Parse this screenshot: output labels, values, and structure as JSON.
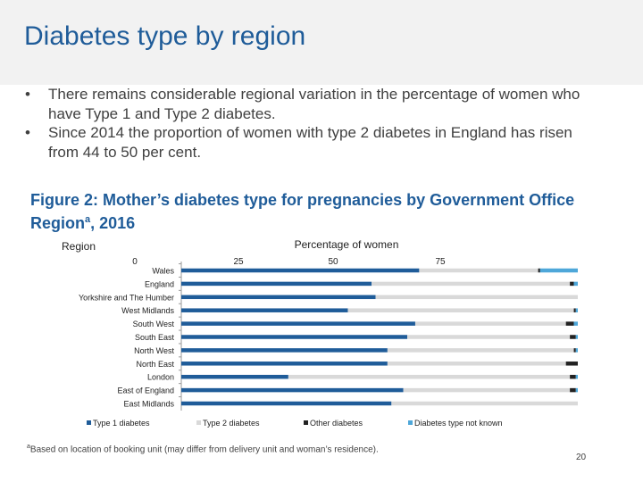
{
  "slide": {
    "title": "Diabetes type by region",
    "bullets": [
      "There remains considerable regional variation in the percentage of women who have Type 1 and Type 2 diabetes.",
      "Since 2014 the proportion of women with type 2 diabetes in England has risen from 44 to 50 per cent."
    ],
    "bullet_symbol": "•",
    "figure_title": "Figure 2: Mother’s diabetes type for pregnancies by Government Office Region",
    "figure_title_sup": "a",
    "figure_title_suffix": ", 2016",
    "footnote_marker": "a",
    "footnote": "Based on location of booking unit (may differ from delivery unit and woman’s residence).",
    "page_number": "20"
  },
  "chart_data": {
    "type": "bar",
    "orientation": "horizontal",
    "stacked": true,
    "title": "",
    "xlabel": "Percentage of women",
    "ylabel": "Region",
    "xlim": [
      0,
      100
    ],
    "x_ticks": [
      0,
      25,
      50,
      75
    ],
    "categories": [
      "Wales",
      "England",
      "Yorkshire and The Humber",
      "West Midlands",
      "South West",
      "South East",
      "North West",
      "North East",
      "London",
      "East of England",
      "East Midlands"
    ],
    "series": [
      {
        "name": "Type 1 diabetes",
        "color": "#1f5c99",
        "values": [
          60,
          48,
          49,
          42,
          59,
          57,
          52,
          52,
          27,
          56,
          53
        ]
      },
      {
        "name": "Type 2 diabetes",
        "color": "#d9d9d9",
        "values": [
          30,
          50,
          51,
          57,
          38,
          41,
          47,
          45,
          71,
          42,
          47
        ]
      },
      {
        "name": "Other diabetes",
        "color": "#222222",
        "values": [
          0.5,
          1,
          0,
          0.5,
          2,
          1.5,
          0.5,
          3,
          1.5,
          1.5,
          0
        ]
      },
      {
        "name": "Diabetes type not known",
        "color": "#4ea7d9",
        "values": [
          9.5,
          1,
          0,
          0.5,
          1,
          0.5,
          0.5,
          0,
          0.5,
          0.5,
          0
        ]
      }
    ],
    "legend_position": "bottom",
    "grid": false
  }
}
